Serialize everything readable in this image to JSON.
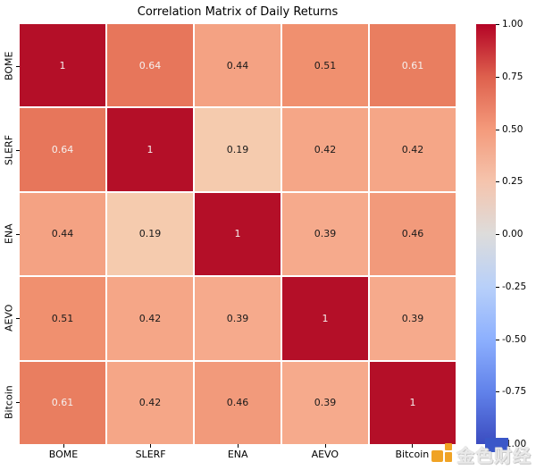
{
  "title": "Correlation Matrix of Daily Returns",
  "watermark": {
    "text": "金色财经",
    "icon": "golden-blocks-logo",
    "accent_orange": "#f0a325",
    "accent_blue": "#3a57c8"
  },
  "chart_data": {
    "type": "heatmap",
    "title": "Correlation Matrix of Daily Returns",
    "categories": [
      "BOME",
      "SLERF",
      "ENA",
      "AEVO",
      "Bitcoin"
    ],
    "matrix": [
      [
        1,
        0.64,
        0.44,
        0.51,
        0.61
      ],
      [
        0.64,
        1,
        0.19,
        0.42,
        0.42
      ],
      [
        0.44,
        0.19,
        1,
        0.39,
        0.46
      ],
      [
        0.51,
        0.42,
        0.39,
        1,
        0.39
      ],
      [
        0.61,
        0.42,
        0.46,
        0.39,
        1
      ]
    ],
    "cell_labels": [
      [
        "1",
        "0.64",
        "0.44",
        "0.51",
        "0.61"
      ],
      [
        "0.64",
        "1",
        "0.19",
        "0.42",
        "0.42"
      ],
      [
        "0.44",
        "0.19",
        "1",
        "0.39",
        "0.46"
      ],
      [
        "0.51",
        "0.42",
        "0.39",
        "1",
        "0.39"
      ],
      [
        "0.61",
        "0.42",
        "0.46",
        "0.39",
        "1"
      ]
    ],
    "value_colors": {
      "1": "#b40f28",
      "0.64": "#e7765b",
      "0.61": "#e97e60",
      "0.51": "#f0906f",
      "0.46": "#f29a7b",
      "0.44": "#f4a283",
      "0.42": "#f5a687",
      "0.39": "#f6aa8c",
      "0.19": "#f5cbae"
    },
    "white_text_min": 0.6,
    "annot_color_dark": "#1a1a1a",
    "annot_color_light": "#f5f0ee",
    "colormap": "coolwarm",
    "vmin": -1.0,
    "vmax": 1.0,
    "grid_line_color": "#ffffff",
    "colorbar": {
      "position": "right",
      "ticks": [
        "1.00",
        "0.75",
        "0.50",
        "0.25",
        "0.00",
        "-0.25",
        "-0.50",
        "-0.75",
        "-1.00"
      ],
      "gradient_stops": [
        {
          "pos": 0.0,
          "color": "#b40426"
        },
        {
          "pos": 0.125,
          "color": "#de604d"
        },
        {
          "pos": 0.25,
          "color": "#f49a7b"
        },
        {
          "pos": 0.375,
          "color": "#f5c4ad"
        },
        {
          "pos": 0.5,
          "color": "#dddcdb"
        },
        {
          "pos": 0.625,
          "color": "#b8d0f9"
        },
        {
          "pos": 0.75,
          "color": "#8db0fe"
        },
        {
          "pos": 0.875,
          "color": "#6182ea"
        },
        {
          "pos": 1.0,
          "color": "#3b4cc0"
        }
      ]
    }
  }
}
